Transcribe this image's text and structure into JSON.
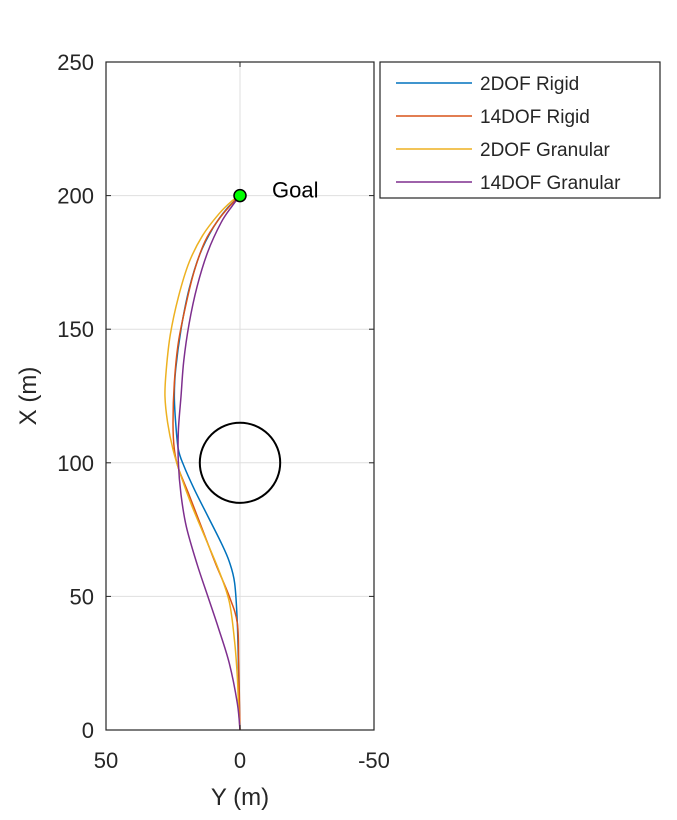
{
  "chart_data": {
    "type": "line",
    "xlabel": "Y (m)",
    "ylabel": "X (m)",
    "xlim": [
      50,
      -50
    ],
    "ylim": [
      0,
      250
    ],
    "x_reversed": true,
    "xticks": [
      50,
      0,
      -50
    ],
    "xtick_labels": [
      "50",
      "0",
      "-50"
    ],
    "yticks": [
      0,
      50,
      100,
      150,
      200,
      250
    ],
    "ytick_labels": [
      "0",
      "50",
      "100",
      "150",
      "200",
      "250"
    ],
    "grid": true,
    "legend_position": "outside-top-right",
    "series": [
      {
        "name": "2DOF Rigid",
        "color": "#0072BD",
        "points": [
          [
            0,
            0
          ],
          [
            0.5,
            20
          ],
          [
            1,
            40
          ],
          [
            2,
            55
          ],
          [
            4,
            63
          ],
          [
            7,
            70
          ],
          [
            12,
            80
          ],
          [
            17,
            90
          ],
          [
            21,
            99
          ],
          [
            23,
            105
          ],
          [
            24,
            115
          ],
          [
            24.5,
            125
          ],
          [
            24,
            135
          ],
          [
            22,
            150
          ],
          [
            19,
            165
          ],
          [
            15,
            178
          ],
          [
            10,
            188
          ],
          [
            5,
            195
          ],
          [
            0,
            200
          ]
        ]
      },
      {
        "name": "14DOF Rigid",
        "color": "#D95319",
        "points": [
          [
            0,
            0
          ],
          [
            0.5,
            25
          ],
          [
            1,
            40
          ],
          [
            4,
            50
          ],
          [
            9,
            62
          ],
          [
            14,
            75
          ],
          [
            19,
            88
          ],
          [
            23,
            98
          ],
          [
            24.5,
            105
          ],
          [
            25,
            115
          ],
          [
            24.5,
            130
          ],
          [
            23,
            145
          ],
          [
            20,
            160
          ],
          [
            17,
            172
          ],
          [
            13,
            183
          ],
          [
            8,
            191
          ],
          [
            3,
            197
          ],
          [
            0,
            200
          ]
        ]
      },
      {
        "name": "2DOF Granular",
        "color": "#EDB120",
        "points": [
          [
            0,
            0
          ],
          [
            0.5,
            8
          ],
          [
            1,
            20
          ],
          [
            2,
            33
          ],
          [
            4,
            48
          ],
          [
            8,
            60
          ],
          [
            13,
            72
          ],
          [
            18,
            84
          ],
          [
            22,
            95
          ],
          [
            25,
            105
          ],
          [
            27,
            115
          ],
          [
            28,
            125
          ],
          [
            27.5,
            135
          ],
          [
            26,
            148
          ],
          [
            23,
            162
          ],
          [
            19,
            175
          ],
          [
            14,
            185
          ],
          [
            8,
            193
          ],
          [
            3,
            198
          ],
          [
            0,
            200
          ]
        ]
      },
      {
        "name": "14DOF Granular",
        "color": "#7E2F8E",
        "points": [
          [
            0,
            0
          ],
          [
            1,
            10
          ],
          [
            4,
            25
          ],
          [
            8,
            38
          ],
          [
            12,
            50
          ],
          [
            16,
            62
          ],
          [
            20,
            76
          ],
          [
            22,
            88
          ],
          [
            23,
            100
          ],
          [
            23,
            112
          ],
          [
            22,
            125
          ],
          [
            21,
            138
          ],
          [
            19,
            152
          ],
          [
            16,
            166
          ],
          [
            12,
            179
          ],
          [
            7,
            190
          ],
          [
            3,
            196
          ],
          [
            0,
            200
          ]
        ]
      }
    ],
    "obstacle": {
      "center": [
        0,
        100
      ],
      "radius": 15,
      "color": "#000000"
    },
    "goal": {
      "point": [
        0,
        200
      ],
      "label": "Goal",
      "color": "#00ff00"
    }
  }
}
